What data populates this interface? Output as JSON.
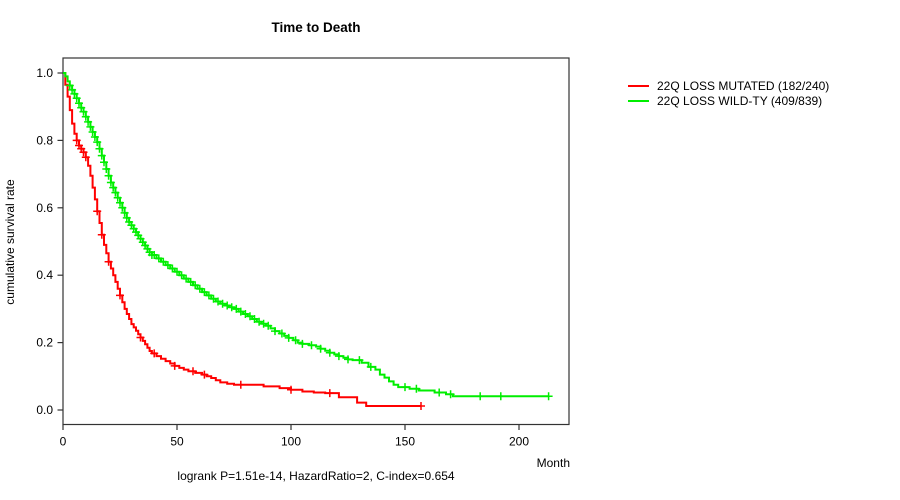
{
  "title": "Time to Death",
  "y_axis_label": "cumulative survival rate",
  "x_axis_unit_label": "Month",
  "footer_annotation": "logrank P=1.51e-14, HazardRatio=2, C-index=0.654",
  "colors": {
    "mutated": "#ff0000",
    "wildtype": "#00ee00",
    "axis": "#333333"
  },
  "chart_data": {
    "type": "line",
    "subtype": "kaplan-meier-step",
    "title": "Time to Death",
    "xlabel": "Month",
    "ylabel": "cumulative survival rate",
    "xlim": [
      0,
      222
    ],
    "ylim": [
      0,
      1.0
    ],
    "x_ticks": [
      0,
      50,
      100,
      150,
      200
    ],
    "y_ticks": [
      0.0,
      0.2,
      0.4,
      0.6,
      0.8,
      1.0
    ],
    "grid": false,
    "legend_position": "right-outside",
    "annotation": "logrank P=1.51e-14, HazardRatio=2, C-index=0.654",
    "series": [
      {
        "name": "22Q LOSS MUTATED (182/240)",
        "color": "#ff0000",
        "steps": [
          [
            0,
            1.0
          ],
          [
            1,
            0.965
          ],
          [
            2,
            0.93
          ],
          [
            3,
            0.89
          ],
          [
            4,
            0.85
          ],
          [
            5,
            0.82
          ],
          [
            6,
            0.8
          ],
          [
            7,
            0.785
          ],
          [
            8,
            0.775
          ],
          [
            9,
            0.765
          ],
          [
            10,
            0.75
          ],
          [
            11,
            0.725
          ],
          [
            12,
            0.695
          ],
          [
            13,
            0.66
          ],
          [
            14,
            0.625
          ],
          [
            15,
            0.59
          ],
          [
            16,
            0.555
          ],
          [
            17,
            0.52
          ],
          [
            18,
            0.49
          ],
          [
            19,
            0.465
          ],
          [
            20,
            0.44
          ],
          [
            21,
            0.42
          ],
          [
            22,
            0.4
          ],
          [
            23,
            0.38
          ],
          [
            24,
            0.36
          ],
          [
            25,
            0.34
          ],
          [
            26,
            0.32
          ],
          [
            27,
            0.3
          ],
          [
            28,
            0.285
          ],
          [
            29,
            0.27
          ],
          [
            30,
            0.255
          ],
          [
            31,
            0.245
          ],
          [
            32,
            0.235
          ],
          [
            33,
            0.225
          ],
          [
            34,
            0.215
          ],
          [
            35,
            0.205
          ],
          [
            36,
            0.195
          ],
          [
            37,
            0.185
          ],
          [
            38,
            0.175
          ],
          [
            39,
            0.168
          ],
          [
            41,
            0.16
          ],
          [
            43,
            0.152
          ],
          [
            45,
            0.145
          ],
          [
            47,
            0.138
          ],
          [
            49,
            0.131
          ],
          [
            51,
            0.125
          ],
          [
            53,
            0.12
          ],
          [
            55,
            0.115
          ],
          [
            58,
            0.11
          ],
          [
            61,
            0.105
          ],
          [
            63,
            0.1
          ],
          [
            65,
            0.095
          ],
          [
            67,
            0.088
          ],
          [
            69,
            0.082
          ],
          [
            72,
            0.078
          ],
          [
            75,
            0.075
          ],
          [
            88,
            0.07
          ],
          [
            95,
            0.065
          ],
          [
            100,
            0.06
          ],
          [
            105,
            0.055
          ],
          [
            110,
            0.052
          ],
          [
            115,
            0.05
          ],
          [
            121,
            0.038
          ],
          [
            129,
            0.022
          ],
          [
            133,
            0.012
          ],
          [
            157,
            0.012
          ]
        ],
        "censor_months": [
          6,
          7,
          8,
          9,
          10,
          15,
          17,
          20,
          25,
          34,
          40,
          49,
          57,
          62,
          78,
          100,
          117,
          157
        ]
      },
      {
        "name": "22Q LOSS WILD-TY (409/839)",
        "color": "#00ee00",
        "steps": [
          [
            0,
            1.0
          ],
          [
            1,
            0.99
          ],
          [
            2,
            0.975
          ],
          [
            3,
            0.963
          ],
          [
            4,
            0.95
          ],
          [
            5,
            0.938
          ],
          [
            6,
            0.925
          ],
          [
            7,
            0.91
          ],
          [
            8,
            0.897
          ],
          [
            9,
            0.885
          ],
          [
            10,
            0.87
          ],
          [
            11,
            0.855
          ],
          [
            12,
            0.84
          ],
          [
            13,
            0.825
          ],
          [
            14,
            0.81
          ],
          [
            15,
            0.795
          ],
          [
            16,
            0.775
          ],
          [
            17,
            0.755
          ],
          [
            18,
            0.735
          ],
          [
            19,
            0.715
          ],
          [
            20,
            0.695
          ],
          [
            21,
            0.675
          ],
          [
            22,
            0.66
          ],
          [
            23,
            0.645
          ],
          [
            24,
            0.63
          ],
          [
            25,
            0.615
          ],
          [
            26,
            0.6
          ],
          [
            27,
            0.585
          ],
          [
            28,
            0.57
          ],
          [
            29,
            0.558
          ],
          [
            30,
            0.548
          ],
          [
            31,
            0.538
          ],
          [
            32,
            0.528
          ],
          [
            33,
            0.518
          ],
          [
            34,
            0.508
          ],
          [
            35,
            0.498
          ],
          [
            36,
            0.488
          ],
          [
            37,
            0.478
          ],
          [
            38,
            0.468
          ],
          [
            39,
            0.46
          ],
          [
            41,
            0.45
          ],
          [
            43,
            0.44
          ],
          [
            45,
            0.43
          ],
          [
            47,
            0.42
          ],
          [
            49,
            0.41
          ],
          [
            51,
            0.4
          ],
          [
            53,
            0.39
          ],
          [
            55,
            0.38
          ],
          [
            57,
            0.37
          ],
          [
            59,
            0.36
          ],
          [
            61,
            0.35
          ],
          [
            63,
            0.34
          ],
          [
            65,
            0.33
          ],
          [
            67,
            0.322
          ],
          [
            69,
            0.315
          ],
          [
            71,
            0.31
          ],
          [
            73,
            0.305
          ],
          [
            75,
            0.3
          ],
          [
            77,
            0.292
          ],
          [
            79,
            0.285
          ],
          [
            81,
            0.278
          ],
          [
            83,
            0.27
          ],
          [
            85,
            0.262
          ],
          [
            87,
            0.256
          ],
          [
            89,
            0.25
          ],
          [
            91,
            0.242
          ],
          [
            93,
            0.234
          ],
          [
            95,
            0.227
          ],
          [
            97,
            0.22
          ],
          [
            99,
            0.214
          ],
          [
            101,
            0.207
          ],
          [
            103,
            0.2
          ],
          [
            105,
            0.196
          ],
          [
            108,
            0.192
          ],
          [
            111,
            0.188
          ],
          [
            113,
            0.182
          ],
          [
            115,
            0.176
          ],
          [
            117,
            0.17
          ],
          [
            119,
            0.165
          ],
          [
            121,
            0.16
          ],
          [
            123,
            0.155
          ],
          [
            125,
            0.15
          ],
          [
            127,
            0.148
          ],
          [
            131,
            0.14
          ],
          [
            134,
            0.128
          ],
          [
            137,
            0.12
          ],
          [
            139,
            0.105
          ],
          [
            141,
            0.096
          ],
          [
            143,
            0.085
          ],
          [
            145,
            0.075
          ],
          [
            147,
            0.068
          ],
          [
            152,
            0.063
          ],
          [
            156,
            0.058
          ],
          [
            163,
            0.052
          ],
          [
            168,
            0.047
          ],
          [
            171,
            0.041
          ],
          [
            213,
            0.041
          ]
        ],
        "censor_months": [
          3,
          4,
          5,
          6,
          7,
          8,
          9,
          10,
          11,
          12,
          13,
          14,
          15,
          16,
          17,
          18,
          19,
          20,
          21,
          22,
          23,
          24,
          25,
          26,
          27,
          28,
          29,
          30,
          31,
          32,
          33,
          34,
          35,
          36,
          37,
          38,
          39,
          40,
          42,
          44,
          46,
          48,
          50,
          52,
          54,
          56,
          58,
          60,
          62,
          64,
          66,
          68,
          70,
          72,
          74,
          76,
          78,
          80,
          82,
          84,
          86,
          88,
          90,
          93,
          96,
          99,
          102,
          105,
          109,
          113,
          117,
          121,
          125,
          130,
          135,
          150,
          155,
          165,
          170,
          183,
          192,
          213
        ]
      }
    ]
  }
}
